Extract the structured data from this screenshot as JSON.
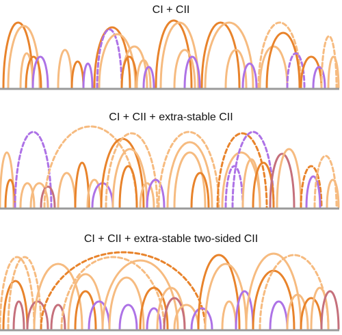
{
  "panels": [
    {
      "title": "CI + CII"
    },
    {
      "title": "CI + CII + extra-stable CII"
    },
    {
      "title": "CI + CII + extra-stable two-sided CII"
    }
  ]
}
